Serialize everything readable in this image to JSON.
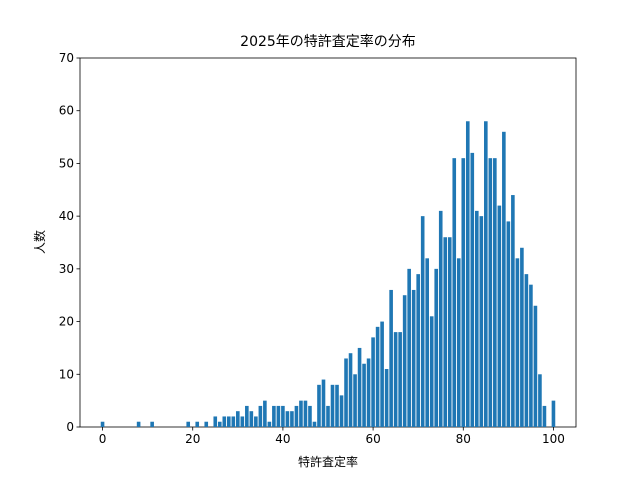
{
  "chart_data": {
    "type": "bar",
    "title": "2025年の特許査定率の分布",
    "xlabel": "特許査定率",
    "ylabel": "人数",
    "color": "#1f77b4",
    "x": [
      0,
      1,
      2,
      3,
      4,
      5,
      6,
      7,
      8,
      9,
      10,
      11,
      12,
      13,
      14,
      15,
      16,
      17,
      18,
      19,
      20,
      21,
      22,
      23,
      24,
      25,
      26,
      27,
      28,
      29,
      30,
      31,
      32,
      33,
      34,
      35,
      36,
      37,
      38,
      39,
      40,
      41,
      42,
      43,
      44,
      45,
      46,
      47,
      48,
      49,
      50,
      51,
      52,
      53,
      54,
      55,
      56,
      57,
      58,
      59,
      60,
      61,
      62,
      63,
      64,
      65,
      66,
      67,
      68,
      69,
      70,
      71,
      72,
      73,
      74,
      75,
      76,
      77,
      78,
      79,
      80,
      81,
      82,
      83,
      84,
      85,
      86,
      87,
      88,
      89,
      90,
      91,
      92,
      93,
      94,
      95,
      96,
      97,
      98,
      99,
      100
    ],
    "values": [
      1,
      0,
      0,
      0,
      0,
      0,
      0,
      0,
      1,
      0,
      0,
      1,
      0,
      0,
      0,
      0,
      0,
      0,
      0,
      1,
      0,
      1,
      0,
      1,
      0,
      2,
      1,
      2,
      2,
      2,
      3,
      2,
      4,
      3,
      2,
      4,
      5,
      1,
      4,
      4,
      4,
      3,
      3,
      4,
      5,
      5,
      4,
      1,
      8,
      9,
      4,
      8,
      8,
      6,
      13,
      14,
      10,
      15,
      12,
      13,
      17,
      19,
      20,
      11,
      26,
      18,
      18,
      25,
      30,
      26,
      29,
      40,
      32,
      21,
      30,
      41,
      36,
      36,
      51,
      32,
      51,
      58,
      52,
      41,
      40,
      58,
      51,
      51,
      42,
      56,
      39,
      44,
      32,
      34,
      29,
      27,
      23,
      10,
      4,
      0,
      5
    ],
    "xlim": [
      -5,
      105
    ],
    "ylim": [
      0,
      70
    ],
    "xticks": [
      0,
      20,
      40,
      60,
      80,
      100
    ],
    "yticks": [
      0,
      10,
      20,
      30,
      40,
      50,
      60,
      70
    ]
  }
}
